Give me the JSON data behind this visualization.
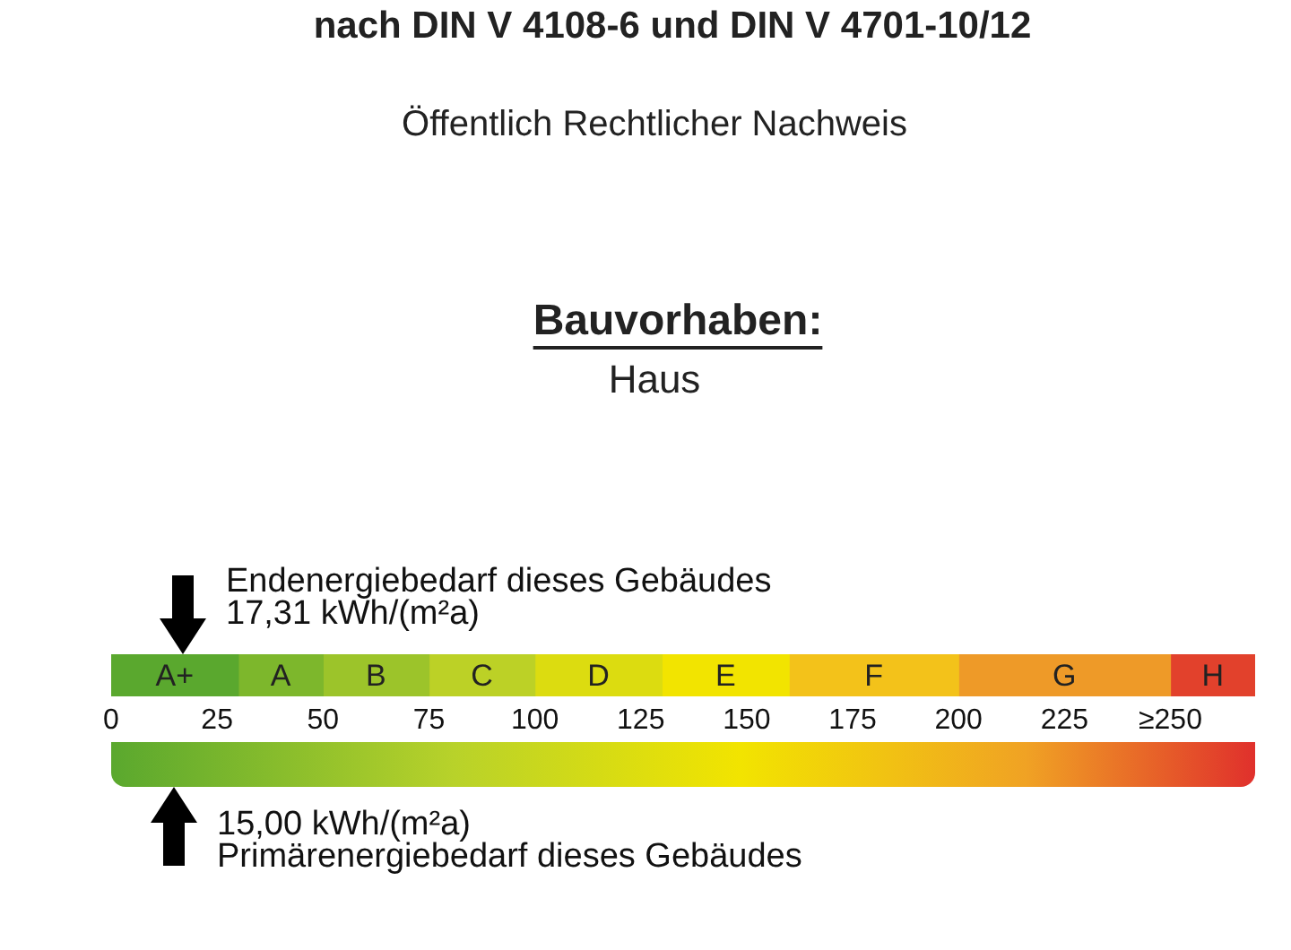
{
  "chart_data": {
    "type": "bar",
    "orientation": "horizontal",
    "stacked": true,
    "title": "nach DIN V 4108-6 und DIN V 4701-10/12",
    "subtitle": "Öffentlich Rechtlicher Nachweis",
    "annotations": [
      "Bauvorhaben:",
      "Haus",
      "Endenergiebedarf dieses Gebäudes\n17,31 kWh/(m²a)",
      "15,00 kWh/(m²a)\nPrimärenergiebedarf dieses Gebäudes"
    ],
    "categories": [
      null
    ],
    "series": [
      {
        "name": "A+",
        "color": "#5aa82e",
        "values": [
          30
        ]
      },
      {
        "name": "A",
        "color": "#7db72c",
        "values": [
          20
        ]
      },
      {
        "name": "B",
        "color": "#9cc42a",
        "values": [
          25
        ]
      },
      {
        "name": "C",
        "color": "#bcd126",
        "values": [
          25
        ]
      },
      {
        "name": "D",
        "color": "#dcdc10",
        "values": [
          30
        ]
      },
      {
        "name": "E",
        "color": "#f2e400",
        "values": [
          30
        ]
      },
      {
        "name": "F",
        "color": "#f3c21a",
        "values": [
          40
        ]
      },
      {
        "name": "G",
        "color": "#ee9a28",
        "values": [
          50
        ]
      },
      {
        "name": "H",
        "color": "#e2412c",
        "values": [
          20
        ]
      }
    ],
    "xlim": [
      0,
      270
    ],
    "xticks": [
      0,
      25,
      50,
      75,
      100,
      125,
      150,
      175,
      200,
      225,
      {
        "value": 250,
        "label": "≥250"
      }
    ]
  }
}
